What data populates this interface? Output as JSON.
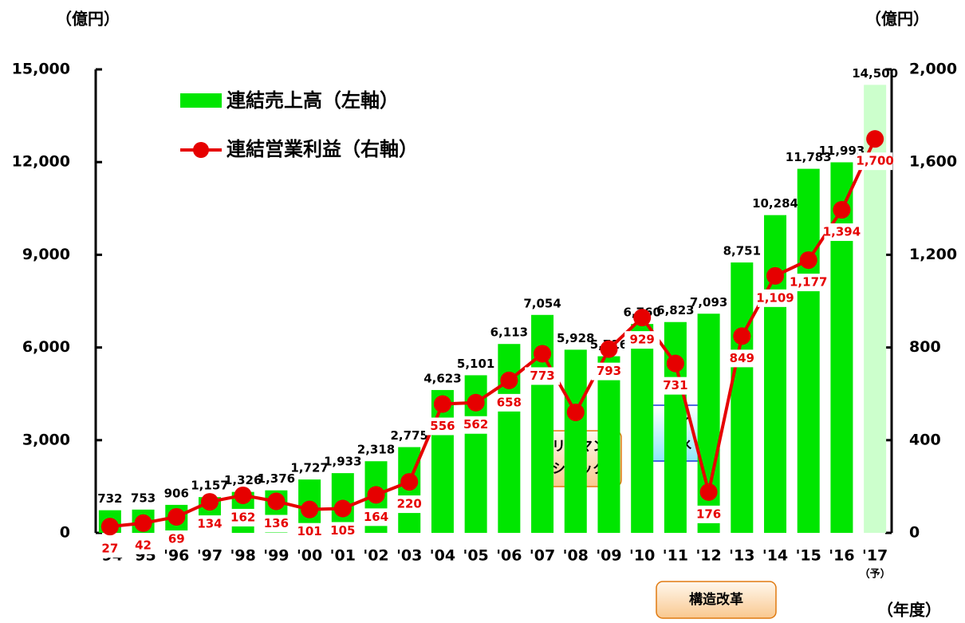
{
  "chart_data": {
    "type": "bar_line",
    "y_unit_left": "（億円）",
    "y_unit_right": "（億円）",
    "x_unit": "（年度）",
    "forecast_note": "（予）",
    "categories": [
      "'94",
      "'95",
      "'96",
      "'97",
      "'98",
      "'99",
      "'00",
      "'01",
      "'02",
      "'03",
      "'04",
      "'05",
      "'06",
      "'07",
      "'08",
      "'09",
      "'10",
      "'11",
      "'12",
      "'13",
      "'14",
      "'15",
      "'16",
      "'17"
    ],
    "series": [
      {
        "name": "連結売上高（左軸）",
        "color": "#00e600",
        "forecast_color": "#ccffcc",
        "axis": "y",
        "values": [
          732,
          753,
          906,
          1157,
          1326,
          1376,
          1727,
          1933,
          2318,
          2775,
          4623,
          5101,
          6113,
          7054,
          5928,
          5716,
          6760,
          6823,
          7093,
          8751,
          10284,
          11783,
          11993,
          14500
        ],
        "value_labels": [
          "732",
          "753",
          "906",
          "1,157",
          "1,326",
          "1,376",
          "1,727",
          "1,933",
          "2,318",
          "2,775",
          "4,623",
          "5,101",
          "6,113",
          "7,054",
          "5,928",
          "5,716",
          "6,760",
          "6,823",
          "7,093",
          "8,751",
          "10,284",
          "11,783",
          "11,993",
          "14,500"
        ]
      },
      {
        "name": "連結営業利益（右軸）",
        "color": "#e60000",
        "axis": "y2",
        "values": [
          27,
          42,
          69,
          134,
          162,
          136,
          101,
          105,
          164,
          220,
          556,
          562,
          658,
          773,
          520,
          793,
          929,
          731,
          176,
          849,
          1109,
          1177,
          1394,
          1700
        ],
        "value_labels": [
          "27",
          "42",
          "69",
          "134",
          "162",
          "136",
          "101",
          "105",
          "164",
          "220",
          "556",
          "562",
          "658",
          "773",
          null,
          "793",
          "929",
          "731",
          "176",
          "849",
          "1,109",
          "1,177",
          "1,394",
          "1,700"
        ]
      }
    ],
    "ylim": [
      0,
      15000
    ],
    "yticks": [
      0,
      {
        "value": 3000,
        "label": "3,000"
      },
      {
        "value": 6000,
        "label": "6,000"
      },
      {
        "value": 9000,
        "label": "9,000"
      },
      {
        "value": 12000,
        "label": "12,000"
      },
      {
        "value": 15000,
        "label": "15,000"
      }
    ],
    "y2lim": [
      0,
      2000
    ],
    "y2ticks": [
      0,
      400,
      800,
      {
        "value": 1200,
        "label": "1,200"
      },
      {
        "value": 1600,
        "label": "1,600"
      },
      {
        "value": 2000,
        "label": "2,000"
      }
    ],
    "annotations": [
      {
        "lines": [
          "リーマン",
          "ショック"
        ]
      },
      {
        "lines": [
          "タイ",
          "洪水"
        ]
      },
      {
        "lines": [
          "構造改革"
        ]
      }
    ]
  }
}
